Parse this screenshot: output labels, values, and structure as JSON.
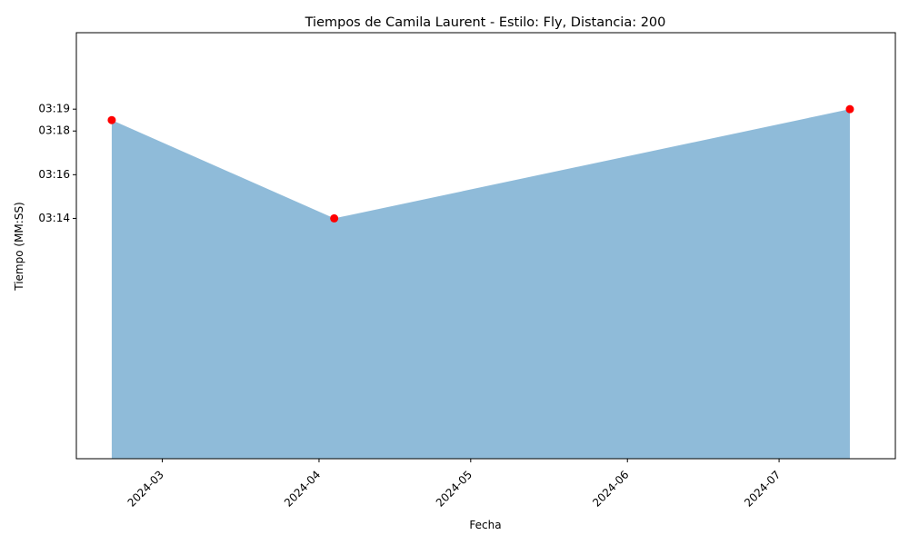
{
  "chart_data": {
    "type": "area",
    "title": "Tiempos de Camila Laurent - Estilo: Fly, Distancia: 200",
    "xlabel": "Fecha",
    "ylabel": "Tiempo (MM:SS)",
    "x": [
      "2024-02-20",
      "2024-04-04",
      "2024-07-15"
    ],
    "y": [
      "03:18.5",
      "03:14",
      "03:19"
    ],
    "x_ticks": [
      "2024-03",
      "2024-04",
      "2024-05",
      "2024-06",
      "2024-07"
    ],
    "y_ticks": [
      "03:14",
      "03:16",
      "03:18",
      "03:19"
    ],
    "xlim": [
      "2024-02-13",
      "2024-07-24"
    ],
    "ylim": [
      "03:03",
      "03:22.5"
    ],
    "grid": false,
    "legend": "none",
    "colors": {
      "area_fill": "#1f77b4",
      "area_opacity": 0.5,
      "marker": "#ff0000"
    }
  }
}
